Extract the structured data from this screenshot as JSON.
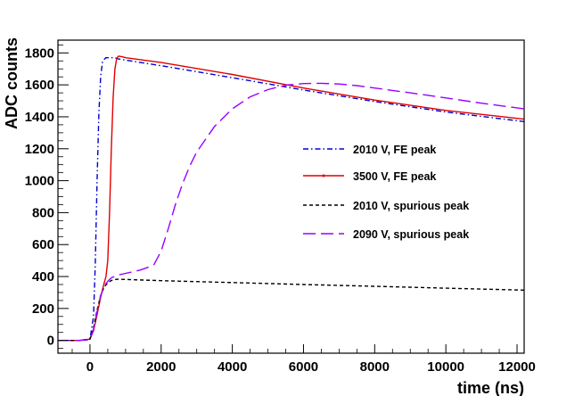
{
  "chart_data": {
    "type": "line",
    "title": "",
    "xlabel": "time (ns)",
    "ylabel": "ADC counts",
    "xlim": [
      -900,
      12200
    ],
    "ylim": [
      -80,
      1880
    ],
    "x_ticks": [
      0,
      2000,
      4000,
      6000,
      8000,
      10000,
      12000
    ],
    "y_ticks": [
      0,
      200,
      400,
      600,
      800,
      1000,
      1200,
      1400,
      1600,
      1800
    ],
    "grid": false,
    "legend_position": "center-right",
    "series": [
      {
        "name": "2010 V, FE peak",
        "color": "#0000cc",
        "dash": "dash-dot",
        "x": [
          -900,
          -600,
          -300,
          0,
          100,
          150,
          200,
          250,
          300,
          350,
          400,
          450,
          500,
          600,
          700,
          800,
          1000,
          2000,
          4000,
          6000,
          8000,
          10000,
          12200
        ],
        "y": [
          0,
          0,
          0,
          5,
          150,
          480,
          1000,
          1420,
          1650,
          1740,
          1760,
          1770,
          1770,
          1770,
          1770,
          1762,
          1755,
          1720,
          1645,
          1568,
          1496,
          1430,
          1370
        ]
      },
      {
        "name": "3500 V, FE peak",
        "color": "#e00000",
        "dash": "solid",
        "x": [
          -900,
          -600,
          -300,
          0,
          100,
          200,
          300,
          400,
          450,
          500,
          550,
          600,
          650,
          700,
          750,
          800,
          900,
          1000,
          2000,
          4000,
          6000,
          8000,
          10000,
          12200
        ],
        "y": [
          0,
          0,
          0,
          8,
          60,
          160,
          270,
          360,
          400,
          500,
          800,
          1200,
          1520,
          1700,
          1765,
          1780,
          1776,
          1770,
          1740,
          1665,
          1580,
          1505,
          1440,
          1385
        ]
      },
      {
        "name": "2010 V, spurious peak",
        "color": "#000000",
        "dash": "dashed",
        "x": [
          -900,
          -600,
          -300,
          0,
          100,
          200,
          300,
          400,
          500,
          600,
          700,
          800,
          1000,
          1500,
          2000,
          4000,
          6000,
          8000,
          10000,
          12200
        ],
        "y": [
          0,
          0,
          0,
          8,
          80,
          190,
          280,
          335,
          360,
          375,
          382,
          383,
          382,
          378,
          374,
          362,
          350,
          339,
          327,
          315
        ]
      },
      {
        "name": "2090 V, spurious peak",
        "color": "#9900ff",
        "dash": "long-dash",
        "x": [
          -900,
          -600,
          -300,
          0,
          100,
          200,
          300,
          400,
          500,
          600,
          800,
          1000,
          1200,
          1400,
          1600,
          1800,
          2000,
          2200,
          2400,
          2600,
          2800,
          3000,
          3500,
          4000,
          4500,
          5000,
          5500,
          6000,
          6500,
          7000,
          7500,
          8000,
          9000,
          10000,
          11000,
          12200
        ],
        "y": [
          0,
          0,
          0,
          5,
          70,
          180,
          280,
          340,
          370,
          392,
          410,
          420,
          430,
          440,
          455,
          475,
          560,
          700,
          850,
          980,
          1090,
          1180,
          1340,
          1450,
          1525,
          1570,
          1598,
          1608,
          1610,
          1605,
          1595,
          1580,
          1550,
          1518,
          1485,
          1450
        ]
      }
    ]
  }
}
